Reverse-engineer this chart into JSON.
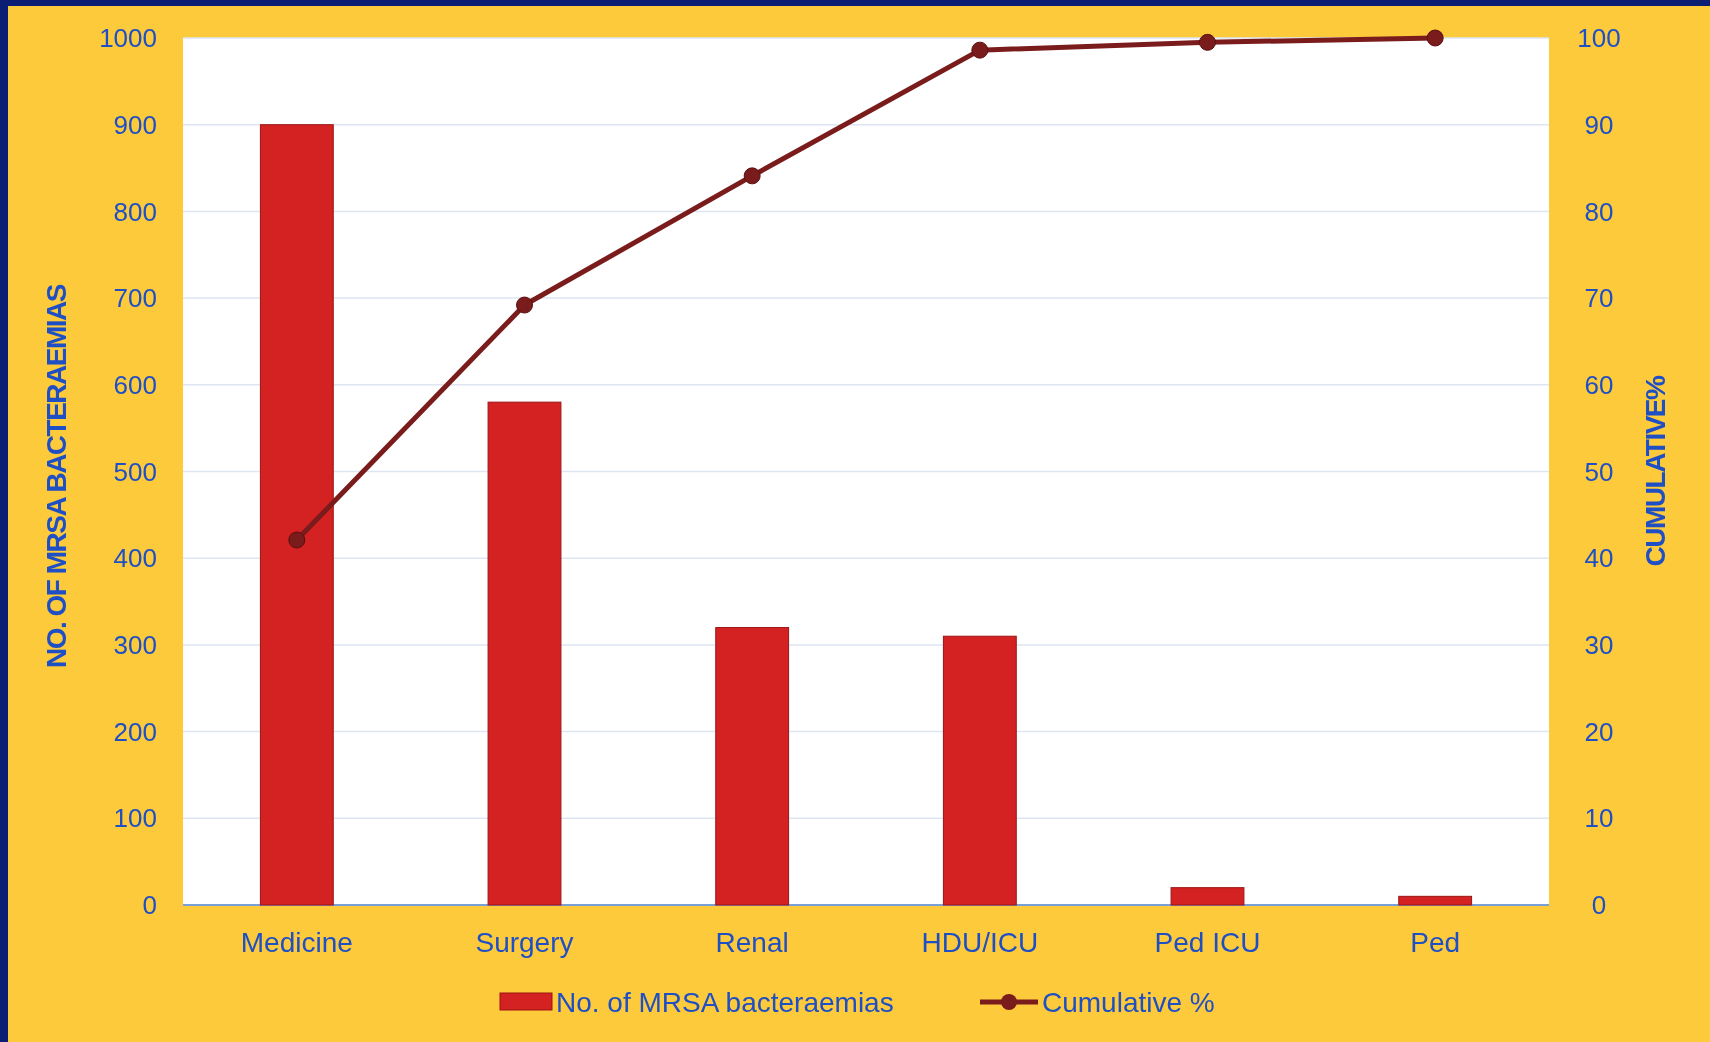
{
  "chart_data": {
    "type": "bar",
    "categories": [
      "Medicine",
      "Surgery",
      "Renal",
      "HDU/ICU",
      "Ped ICU",
      "Ped"
    ],
    "ylabel": "NO. OF MRSA BACTERAEMIAS",
    "y2label": "CUMULATIVE%",
    "series": [
      {
        "name": "No. of MRSA bacteraemias",
        "color": "#d42121",
        "values": [
          900,
          580,
          320,
          310,
          20,
          10
        ]
      },
      {
        "name": "Cumulative %",
        "type": "line",
        "axis": "y2",
        "color": "#7b1c1c",
        "values": [
          42.1,
          69.2,
          84.1,
          98.6,
          99.5,
          100
        ]
      }
    ],
    "ylim": [
      0,
      1000
    ],
    "yticks": [
      0,
      100,
      200,
      300,
      400,
      500,
      600,
      700,
      800,
      900,
      1000
    ],
    "y2lim": [
      0,
      100
    ],
    "y2ticks": [
      0,
      10,
      20,
      30,
      40,
      50,
      60,
      70,
      80,
      90,
      100
    ],
    "grid": "y",
    "legend": "bottom",
    "marker": "circle",
    "line_style": "solid"
  }
}
